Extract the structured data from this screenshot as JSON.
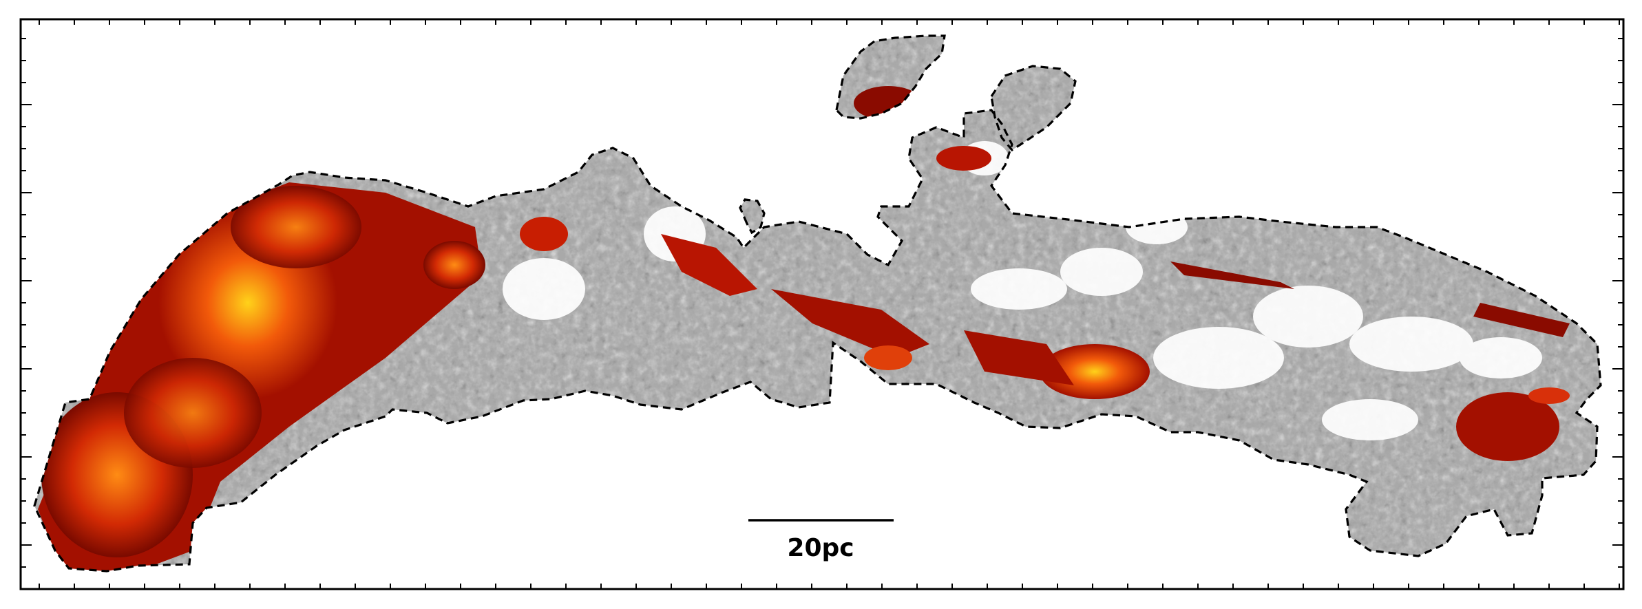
{
  "figure": {
    "scalebar_label": "20pc"
  },
  "colors": {
    "frame": "#000000",
    "background": "#ffffff",
    "contour": "#000000",
    "emission_high": "#ffd21a",
    "emission_mid": "#f25a0a",
    "emission_low": "#a31000",
    "emission_dark": "#5a0500",
    "diffuse_gray": "#9a9a9a",
    "diffuse_dark": "#3c3c3c"
  },
  "icons": {
    "scalebar": "horizontal-line"
  }
}
